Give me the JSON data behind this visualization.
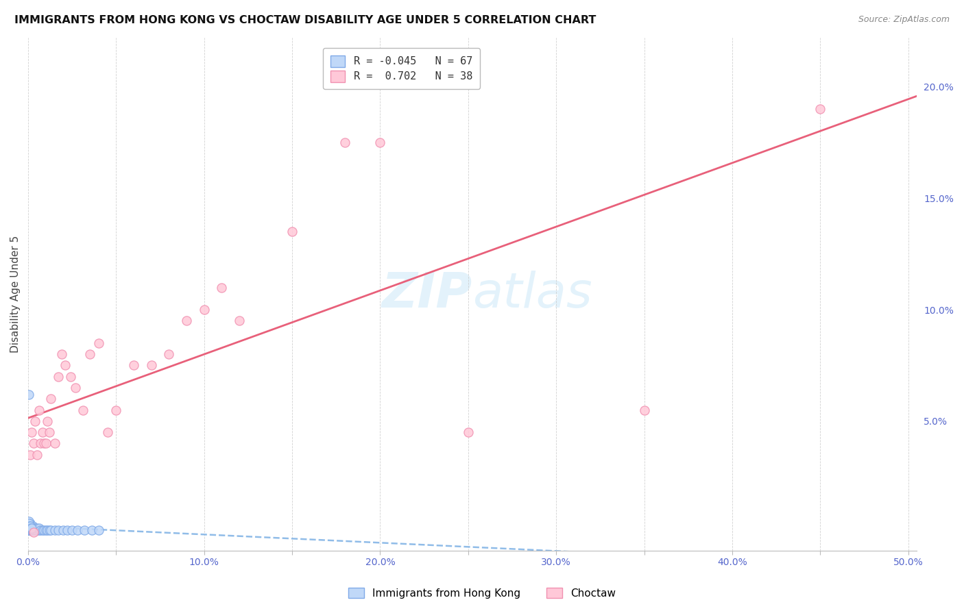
{
  "title": "IMMIGRANTS FROM HONG KONG VS CHOCTAW DISABILITY AGE UNDER 5 CORRELATION CHART",
  "source": "Source: ZipAtlas.com",
  "ylabel": "Disability Age Under 5",
  "legend_label1": "Immigrants from Hong Kong",
  "legend_label2": "Choctaw",
  "R1": -0.045,
  "N1": 67,
  "R2": 0.702,
  "N2": 38,
  "color1_face": "#c0d8f8",
  "color1_edge": "#80aae8",
  "color2_face": "#ffc8d8",
  "color2_edge": "#f090b0",
  "trendline1_color": "#90bce8",
  "trendline2_color": "#e8607a",
  "watermark_color": "#cce8f8",
  "xlim": [
    0.0,
    0.505
  ],
  "ylim": [
    -0.008,
    0.222
  ],
  "figsize": [
    14.06,
    8.92
  ],
  "dpi": 100,
  "blue_x": [
    0.0002,
    0.0003,
    0.0004,
    0.0004,
    0.0005,
    0.0005,
    0.0006,
    0.0006,
    0.0007,
    0.0007,
    0.0008,
    0.0008,
    0.0009,
    0.0009,
    0.001,
    0.001,
    0.001,
    0.0012,
    0.0012,
    0.0013,
    0.0014,
    0.0015,
    0.0015,
    0.0016,
    0.0017,
    0.0018,
    0.002,
    0.002,
    0.0022,
    0.0023,
    0.0025,
    0.0025,
    0.0027,
    0.003,
    0.003,
    0.0032,
    0.0035,
    0.004,
    0.004,
    0.0045,
    0.005,
    0.005,
    0.006,
    0.006,
    0.007,
    0.008,
    0.009,
    0.01,
    0.011,
    0.012,
    0.013,
    0.015,
    0.017,
    0.02,
    0.022,
    0.025,
    0.028,
    0.032,
    0.036,
    0.04,
    0.0002,
    0.0003,
    0.0005,
    0.0007,
    0.001,
    0.0015,
    0.002
  ],
  "blue_y": [
    0.001,
    0.002,
    0.001,
    0.003,
    0.001,
    0.002,
    0.001,
    0.003,
    0.002,
    0.003,
    0.001,
    0.002,
    0.001,
    0.003,
    0.001,
    0.002,
    0.004,
    0.001,
    0.003,
    0.002,
    0.001,
    0.002,
    0.003,
    0.001,
    0.002,
    0.001,
    0.002,
    0.003,
    0.001,
    0.002,
    0.001,
    0.003,
    0.002,
    0.001,
    0.002,
    0.001,
    0.002,
    0.001,
    0.002,
    0.001,
    0.001,
    0.002,
    0.001,
    0.002,
    0.001,
    0.001,
    0.001,
    0.001,
    0.001,
    0.001,
    0.001,
    0.001,
    0.001,
    0.001,
    0.001,
    0.001,
    0.001,
    0.001,
    0.001,
    0.001,
    0.062,
    0.005,
    0.004,
    0.003,
    0.003,
    0.002,
    0.002
  ],
  "pink_x": [
    0.001,
    0.002,
    0.003,
    0.004,
    0.005,
    0.006,
    0.007,
    0.008,
    0.009,
    0.01,
    0.011,
    0.012,
    0.013,
    0.015,
    0.017,
    0.019,
    0.021,
    0.024,
    0.027,
    0.031,
    0.035,
    0.04,
    0.045,
    0.05,
    0.06,
    0.07,
    0.08,
    0.09,
    0.1,
    0.11,
    0.12,
    0.15,
    0.18,
    0.2,
    0.25,
    0.35,
    0.45,
    0.003
  ],
  "pink_y": [
    0.035,
    0.045,
    0.04,
    0.05,
    0.035,
    0.055,
    0.04,
    0.045,
    0.04,
    0.04,
    0.05,
    0.045,
    0.06,
    0.04,
    0.07,
    0.08,
    0.075,
    0.07,
    0.065,
    0.055,
    0.08,
    0.085,
    0.045,
    0.055,
    0.075,
    0.075,
    0.08,
    0.095,
    0.1,
    0.11,
    0.095,
    0.135,
    0.175,
    0.175,
    0.045,
    0.055,
    0.19,
    0.0
  ]
}
